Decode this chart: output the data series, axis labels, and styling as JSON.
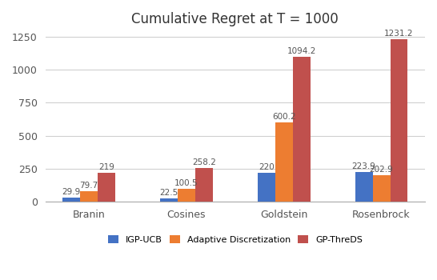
{
  "title": "Cumulative Regret at T = 1000",
  "categories": [
    "Branin",
    "Cosines",
    "Goldstein",
    "Rosenbrock"
  ],
  "series": {
    "IGP-UCB": [
      29.9,
      22.5,
      220,
      223.9
    ],
    "Adaptive Discretization": [
      79.7,
      100.5,
      600.2,
      202.9
    ],
    "GP-ThreDS": [
      219,
      258.2,
      1094.2,
      1231.2
    ]
  },
  "colors": {
    "IGP-UCB": "#4472C4",
    "Adaptive Discretization": "#ED7D31",
    "GP-ThreDS": "#C0504D"
  },
  "ylim": [
    0,
    1300
  ],
  "yticks": [
    0,
    250,
    500,
    750,
    1000,
    1250
  ],
  "legend_labels": [
    "IGP-UCB",
    "Adaptive Discretization",
    "GP-ThreDS"
  ],
  "bar_width": 0.18,
  "label_fontsize": 7.5,
  "title_fontsize": 12,
  "tick_fontsize": 9,
  "legend_fontsize": 8,
  "background_color": "#FFFFFF",
  "grid_color": "#D0D0D0"
}
